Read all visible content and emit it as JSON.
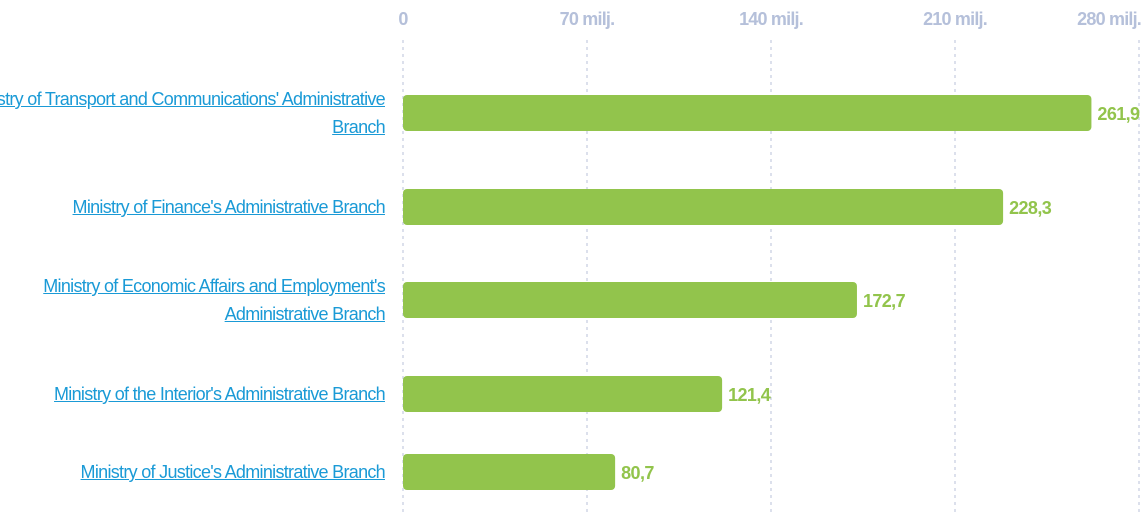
{
  "chart_data": {
    "type": "bar",
    "orientation": "horizontal",
    "categories": [
      "Ministry of Transport and Communications' Administrative Branch",
      "Ministry of Finance's Administrative Branch",
      "Ministry of Economic Affairs and Employment's Administrative Branch",
      "Ministry of the Interior's Administrative Branch",
      "Ministry of Justice's Administrative Branch"
    ],
    "values": [
      261.9,
      228.3,
      172.7,
      121.4,
      80.7
    ],
    "value_labels": [
      "261,9",
      "228,3",
      "172,7",
      "121,4",
      "80,7"
    ],
    "color": "#92c44c",
    "xlim": [
      0,
      280
    ],
    "xticks": [
      0,
      {
        "value": 70,
        "label": "70 milj."
      },
      {
        "value": 140,
        "label": "140 milj."
      },
      {
        "value": 210,
        "label": "210 milj."
      },
      {
        "value": 280,
        "label": "280 milj."
      }
    ],
    "grid": true
  }
}
